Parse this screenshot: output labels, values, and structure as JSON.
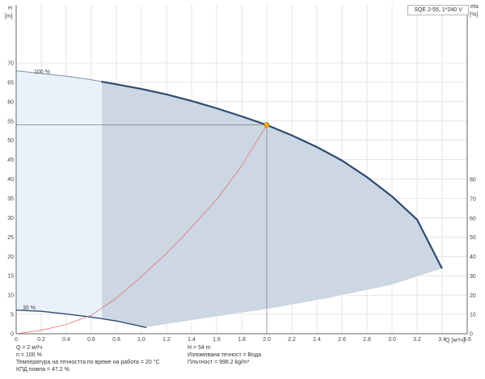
{
  "pump_label": "SQE 2-55, 1*240 V",
  "left_axis": {
    "title": "H",
    "unit": "[m]"
  },
  "right_axis": {
    "title": "eta",
    "unit": "[%]"
  },
  "x_axis": {
    "label": "Q [м³/ч]"
  },
  "info_left": [
    "Q = 2 м³/ч",
    "n = 100 %",
    "Температура на течността по време на работа = 20 °C",
    "КПД помпа = 47.2 %"
  ],
  "info_right": [
    "H = 54 m",
    "Изпомпвана течност = Вода",
    "Плътност = 998.2 kg/m³"
  ],
  "chart_data": {
    "type": "line",
    "x_ticks": [
      0,
      0.2,
      0.4,
      0.6,
      0.8,
      1.0,
      1.2,
      1.4,
      1.6,
      1.8,
      2.0,
      2.2,
      2.4,
      2.6,
      2.8,
      3.0,
      3.2,
      3.4,
      3.6
    ],
    "x_tick_labels": [
      "0",
      "0.2",
      "0.4",
      "0.6",
      "0.8",
      "1.0",
      "1.2",
      "1.4",
      "1.6",
      "1.8",
      "2.0",
      "2.2",
      "2.4",
      "2.6",
      "2.8",
      "3.0",
      "3.2",
      "3.4",
      "3.6"
    ],
    "y_ticks": [
      0,
      5,
      10,
      15,
      20,
      25,
      30,
      35,
      40,
      45,
      50,
      55,
      60,
      65,
      70
    ],
    "y_tick_labels": [
      "0",
      "5",
      "10",
      "15",
      "20",
      "25",
      "30",
      "35",
      "40",
      "45",
      "50",
      "55",
      "60",
      "65",
      "70"
    ],
    "eta_ticks": [
      0,
      10,
      20,
      30,
      40,
      50,
      60,
      70,
      80
    ],
    "eta_tick_labels": [
      "0",
      "10",
      "20",
      "30",
      "40",
      "50",
      "60",
      "70",
      "80"
    ],
    "xlim": [
      0,
      3.6
    ],
    "ylim": [
      0,
      70
    ],
    "eta_lim": [
      0,
      80
    ],
    "grid": true,
    "series": [
      {
        "name": "100 %",
        "x": [
          0,
          0.2,
          0.4,
          0.6,
          0.68,
          0.8,
          1.0,
          1.2,
          1.4,
          1.6,
          1.8,
          2.0,
          2.2,
          2.4,
          2.6,
          2.8,
          3.0,
          3.2,
          3.4
        ],
        "y": [
          68,
          67.3,
          66.6,
          65.7,
          65.2,
          64.5,
          63.3,
          61.9,
          60.2,
          58.3,
          56.2,
          54,
          51.3,
          48.3,
          44.8,
          40.5,
          35.5,
          29.5,
          16.8
        ]
      },
      {
        "name": "30 %",
        "x": [
          0,
          0.2,
          0.4,
          0.6,
          0.8,
          1.0,
          1.04
        ],
        "y": [
          6.1,
          5.8,
          5.1,
          4.3,
          3.3,
          1.9,
          1.6
        ]
      },
      {
        "name": "",
        "x": [
          0,
          0.2,
          0.4,
          0.6,
          0.8,
          1.0,
          1.2,
          1.4,
          1.6,
          1.8,
          2.0
        ],
        "y": [
          0,
          0.9,
          2.4,
          4.8,
          9.2,
          14.8,
          20.8,
          27.5,
          34.7,
          43.4,
          54
        ]
      }
    ],
    "lower_boundary": {
      "x": [
        1.04,
        1.5,
        2.0,
        2.5,
        3.0,
        3.4
      ],
      "y": [
        1.6,
        3.9,
        6.3,
        9.2,
        12.6,
        16.8
      ]
    },
    "duty_point": {
      "x": 2.0,
      "y": 54
    },
    "colors": {
      "envelope": "#ccd7e3",
      "left_band": "#e9f2fb",
      "curve": "#2e4b6e",
      "system_curve": "#e57373",
      "duty_point": "#f5a623",
      "grid": "#d6d6d6"
    }
  }
}
